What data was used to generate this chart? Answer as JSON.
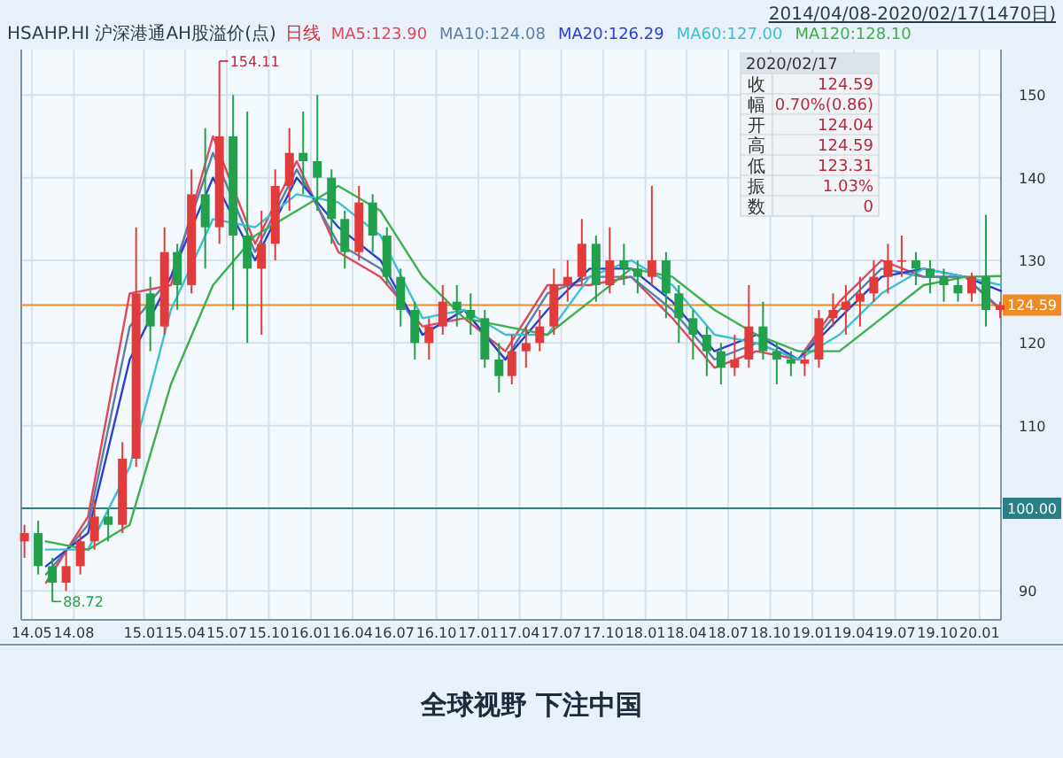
{
  "chart_data": {
    "type": "candlestick",
    "title": "HSAHP.HI 沪深港通AH股溢价(点)",
    "subtitle": "日线",
    "x": [
      "2014-04-15",
      "2014-05-15",
      "2014-06-15",
      "2014-07-15",
      "2014-08-15",
      "2014-09-15",
      "2014-10-15",
      "2014-11-15",
      "2014-12-15",
      "2015-01-15",
      "2015-02-15",
      "2015-03-15",
      "2015-04-15",
      "2015-05-15",
      "2015-06-15",
      "2015-07-15",
      "2015-08-15",
      "2015-09-15",
      "2015-10-15",
      "2015-11-15",
      "2015-12-15",
      "2016-01-15",
      "2016-02-15",
      "2016-03-15",
      "2016-04-15",
      "2016-05-15",
      "2016-06-15",
      "2016-07-15",
      "2016-08-15",
      "2016-09-15",
      "2016-10-15",
      "2016-11-15",
      "2016-12-15",
      "2017-01-15",
      "2017-02-15",
      "2017-03-15",
      "2017-04-15",
      "2017-05-15",
      "2017-06-15",
      "2017-07-15",
      "2017-08-15",
      "2017-09-15",
      "2017-10-15",
      "2017-11-15",
      "2017-12-15",
      "2018-01-15",
      "2018-02-15",
      "2018-03-15",
      "2018-04-15",
      "2018-05-15",
      "2018-06-15",
      "2018-07-15",
      "2018-08-15",
      "2018-09-15",
      "2018-10-15",
      "2018-11-15",
      "2018-12-15",
      "2019-01-15",
      "2019-02-15",
      "2019-03-15",
      "2019-04-15",
      "2019-05-15",
      "2019-06-15",
      "2019-07-15",
      "2019-08-15",
      "2019-09-15",
      "2019-10-15",
      "2019-11-15",
      "2019-12-15",
      "2020-01-15",
      "2020-02-15"
    ],
    "ohlc": [
      [
        96,
        98,
        94,
        97
      ],
      [
        97,
        98.5,
        92,
        93
      ],
      [
        93,
        94,
        88.72,
        91
      ],
      [
        91,
        95,
        90,
        93
      ],
      [
        93,
        97,
        92,
        96
      ],
      [
        96,
        101,
        95,
        99
      ],
      [
        99,
        100,
        96,
        98
      ],
      [
        98,
        108,
        97,
        106
      ],
      [
        106,
        134,
        105,
        126
      ],
      [
        126,
        128,
        119,
        122
      ],
      [
        122,
        134,
        121,
        131
      ],
      [
        131,
        132,
        124,
        127
      ],
      [
        127,
        141,
        126,
        138
      ],
      [
        138,
        146,
        129,
        134
      ],
      [
        134,
        154.11,
        132,
        145
      ],
      [
        145,
        150,
        124,
        133
      ],
      [
        133,
        148,
        120,
        129
      ],
      [
        129,
        136,
        121,
        132
      ],
      [
        132,
        141,
        130,
        139
      ],
      [
        139,
        146,
        136,
        143
      ],
      [
        143,
        148,
        138,
        142
      ],
      [
        142,
        150,
        136,
        140
      ],
      [
        140,
        141,
        132,
        135
      ],
      [
        135,
        136,
        129,
        131
      ],
      [
        131,
        139,
        130,
        137
      ],
      [
        137,
        138,
        131,
        133
      ],
      [
        133,
        134,
        127,
        128
      ],
      [
        128,
        129,
        122,
        124
      ],
      [
        124,
        125,
        118,
        120
      ],
      [
        120,
        123,
        118,
        122
      ],
      [
        122,
        127,
        121,
        125
      ],
      [
        125,
        127,
        122,
        124
      ],
      [
        124,
        126,
        121,
        123
      ],
      [
        123,
        124,
        117,
        118
      ],
      [
        118,
        120,
        114,
        116
      ],
      [
        116,
        121,
        115,
        119
      ],
      [
        119,
        122,
        117,
        120
      ],
      [
        120,
        124,
        119,
        122
      ],
      [
        122,
        129,
        121,
        127
      ],
      [
        127,
        130,
        125,
        128
      ],
      [
        128,
        135,
        127,
        132
      ],
      [
        132,
        133,
        125,
        127
      ],
      [
        127,
        134,
        126,
        130
      ],
      [
        130,
        132,
        127,
        129
      ],
      [
        129,
        130,
        126,
        128
      ],
      [
        128,
        139,
        127,
        130
      ],
      [
        130,
        131,
        123,
        126
      ],
      [
        126,
        127,
        120,
        123
      ],
      [
        123,
        124,
        118,
        121
      ],
      [
        121,
        122,
        116,
        119
      ],
      [
        119,
        120,
        115,
        117
      ],
      [
        117,
        121,
        116,
        118
      ],
      [
        118,
        127,
        117,
        122
      ],
      [
        122,
        125,
        118,
        119
      ],
      [
        119,
        120,
        115,
        118
      ],
      [
        118,
        119,
        116,
        117.5
      ],
      [
        117.5,
        119,
        116,
        118
      ],
      [
        118,
        124,
        117,
        123
      ],
      [
        123,
        126,
        122,
        124
      ],
      [
        124,
        127,
        121,
        125
      ],
      [
        125,
        128,
        122,
        126
      ],
      [
        126,
        130,
        125,
        128
      ],
      [
        128,
        132,
        126,
        130
      ],
      [
        130,
        133,
        128,
        130
      ],
      [
        130,
        131,
        127,
        129
      ],
      [
        129,
        130,
        126,
        128
      ],
      [
        128,
        129,
        125,
        127
      ],
      [
        127,
        128,
        125,
        126
      ],
      [
        126,
        128.5,
        125,
        128
      ],
      [
        128,
        135.5,
        122,
        124
      ],
      [
        124,
        125,
        123,
        124.59
      ]
    ],
    "colors": [
      "#e23b3b",
      "#22a04b",
      "#22a04b",
      "#e23b3b",
      "#e23b3b",
      "#e23b3b",
      "#22a04b",
      "#e23b3b",
      "#e23b3b",
      "#22a04b",
      "#e23b3b",
      "#22a04b",
      "#e23b3b",
      "#22a04b",
      "#e23b3b",
      "#22a04b",
      "#22a04b",
      "#e23b3b",
      "#e23b3b",
      "#e23b3b",
      "#22a04b",
      "#22a04b",
      "#22a04b",
      "#22a04b",
      "#e23b3b",
      "#22a04b",
      "#22a04b",
      "#22a04b",
      "#22a04b",
      "#e23b3b",
      "#e23b3b",
      "#22a04b",
      "#22a04b",
      "#22a04b",
      "#22a04b",
      "#e23b3b",
      "#e23b3b",
      "#e23b3b",
      "#e23b3b",
      "#e23b3b",
      "#e23b3b",
      "#22a04b",
      "#e23b3b",
      "#22a04b",
      "#22a04b",
      "#e23b3b",
      "#22a04b",
      "#22a04b",
      "#22a04b",
      "#22a04b",
      "#22a04b",
      "#e23b3b",
      "#e23b3b",
      "#22a04b",
      "#22a04b",
      "#22a04b",
      "#e23b3b",
      "#e23b3b",
      "#e23b3b",
      "#e23b3b",
      "#e23b3b",
      "#e23b3b",
      "#e23b3b",
      "#e23b3b",
      "#22a04b",
      "#22a04b",
      "#22a04b",
      "#22a04b",
      "#e23b3b",
      "#22a04b",
      "#e23b3b"
    ],
    "series": [
      {
        "type": "line",
        "name": "MA5:123.90",
        "color": "#e0485a",
        "x": [
          "2014-06-01",
          "2014-09-01",
          "2014-12-01",
          "2015-03-01",
          "2015-06-01",
          "2015-09-01",
          "2015-12-01",
          "2016-03-01",
          "2016-06-01",
          "2016-09-01",
          "2016-12-01",
          "2017-03-01",
          "2017-06-01",
          "2017-09-01",
          "2017-12-01",
          "2018-03-01",
          "2018-06-01",
          "2018-09-01",
          "2018-12-01",
          "2019-03-01",
          "2019-06-01",
          "2019-09-01",
          "2019-12-01",
          "2020-02-17"
        ],
        "values": [
          91,
          99,
          126,
          127,
          145,
          132,
          142,
          131,
          128,
          122,
          123,
          119,
          127,
          127,
          128,
          123,
          117,
          119,
          118,
          125,
          130,
          128,
          128,
          123.9
        ]
      },
      {
        "type": "line",
        "name": "MA10:124.08",
        "color": "#5b7fa6",
        "x": [
          "2014-06-01",
          "2014-09-01",
          "2014-12-01",
          "2015-03-01",
          "2015-06-01",
          "2015-09-01",
          "2015-12-01",
          "2016-03-01",
          "2016-06-01",
          "2016-09-01",
          "2016-12-01",
          "2017-03-01",
          "2017-06-01",
          "2017-09-01",
          "2017-12-01",
          "2018-03-01",
          "2018-06-01",
          "2018-09-01",
          "2018-12-01",
          "2019-03-01",
          "2019-06-01",
          "2019-09-01",
          "2019-12-01",
          "2020-02-17"
        ],
        "values": [
          92,
          98,
          122,
          128,
          143,
          131,
          141,
          132,
          129,
          121,
          124,
          118,
          126,
          128,
          128,
          124,
          118,
          120,
          118,
          124,
          129,
          128,
          128,
          124.1
        ]
      },
      {
        "type": "line",
        "name": "MA20:126.29",
        "color": "#2a3fd0",
        "x": [
          "2014-06-01",
          "2014-09-01",
          "2014-12-01",
          "2015-03-01",
          "2015-06-01",
          "2015-09-01",
          "2015-12-01",
          "2016-03-01",
          "2016-06-01",
          "2016-09-01",
          "2016-12-01",
          "2017-03-01",
          "2017-06-01",
          "2017-09-01",
          "2017-12-01",
          "2018-03-01",
          "2018-06-01",
          "2018-09-01",
          "2018-12-01",
          "2019-03-01",
          "2019-06-01",
          "2019-09-01",
          "2019-12-01",
          "2020-02-17"
        ],
        "values": [
          93,
          97,
          118,
          128,
          140,
          130,
          140,
          134,
          130,
          121,
          124,
          118,
          124,
          129,
          129,
          125,
          119,
          121,
          118,
          123,
          128,
          129,
          128,
          126.3
        ]
      },
      {
        "type": "line",
        "name": "MA60:127.00",
        "color": "#3cc0d0",
        "x": [
          "2014-06-01",
          "2014-09-01",
          "2014-12-01",
          "2015-03-01",
          "2015-06-01",
          "2015-09-01",
          "2015-12-01",
          "2016-03-01",
          "2016-06-01",
          "2016-09-01",
          "2016-12-01",
          "2017-03-01",
          "2017-06-01",
          "2017-09-01",
          "2017-12-01",
          "2018-03-01",
          "2018-06-01",
          "2018-09-01",
          "2018-12-01",
          "2019-03-01",
          "2019-06-01",
          "2019-09-01",
          "2019-12-01",
          "2020-02-17"
        ],
        "values": [
          95,
          95,
          105,
          124,
          135,
          134,
          138,
          137,
          133,
          123,
          124,
          121,
          121,
          128,
          130,
          127,
          121,
          120,
          118,
          121,
          126,
          129,
          128,
          127.0
        ]
      },
      {
        "type": "line",
        "name": "MA120:128.10",
        "color": "#3cb04a",
        "x": [
          "2014-06-01",
          "2014-09-01",
          "2014-12-01",
          "2015-03-01",
          "2015-06-01",
          "2015-09-01",
          "2015-12-01",
          "2016-03-01",
          "2016-06-01",
          "2016-09-01",
          "2016-12-01",
          "2017-03-01",
          "2017-06-01",
          "2017-09-01",
          "2017-12-01",
          "2018-03-01",
          "2018-06-01",
          "2018-09-01",
          "2018-12-01",
          "2019-03-01",
          "2019-06-01",
          "2019-09-01",
          "2019-12-01",
          "2020-02-17"
        ],
        "values": [
          96,
          95,
          98,
          115,
          127,
          133,
          136,
          139,
          136,
          128,
          123,
          122,
          121,
          125,
          129,
          128,
          124,
          121,
          119,
          119,
          123,
          127,
          128,
          128.1
        ]
      }
    ],
    "xlim": [
      "2014-04-08",
      "2020-02-17"
    ],
    "ylim": [
      86.5,
      155.5
    ],
    "xticks": [
      {
        "value": "2014-05",
        "label": "14.05"
      },
      {
        "value": "2014-08",
        "label": "14.08"
      },
      {
        "value": "2015-01",
        "label": "15.01"
      },
      {
        "value": "2015-04",
        "label": "15.04"
      },
      {
        "value": "2015-07",
        "label": "15.07"
      },
      {
        "value": "2015-10",
        "label": "15.10"
      },
      {
        "value": "2016-01",
        "label": "16.01"
      },
      {
        "value": "2016-04",
        "label": "16.04"
      },
      {
        "value": "2016-07",
        "label": "16.07"
      },
      {
        "value": "2016-10",
        "label": "16.10"
      },
      {
        "value": "2017-01",
        "label": "17.01"
      },
      {
        "value": "2017-04",
        "label": "17.04"
      },
      {
        "value": "2017-07",
        "label": "17.07"
      },
      {
        "value": "2017-10",
        "label": "17.10"
      },
      {
        "value": "2018-01",
        "label": "18.01"
      },
      {
        "value": "2018-04",
        "label": "18.04"
      },
      {
        "value": "2018-07",
        "label": "18.07"
      },
      {
        "value": "2018-10",
        "label": "18.10"
      },
      {
        "value": "2019-01",
        "label": "19.01"
      },
      {
        "value": "2019-04",
        "label": "19.04"
      },
      {
        "value": "2019-07",
        "label": "19.07"
      },
      {
        "value": "2019-10",
        "label": "19.10"
      },
      {
        "value": "2020-01",
        "label": "20.01"
      }
    ],
    "yticks": [
      90,
      110,
      120,
      130,
      140,
      150
    ],
    "ref_lines": [
      {
        "axis": "y",
        "value": 124.59,
        "label": "124.59",
        "color": "#f08a24"
      },
      {
        "axis": "y",
        "value": 100,
        "label": "100.00",
        "color": "#2a7f86"
      }
    ],
    "annotations": [
      "2014/04/08-2020/02/17(1470日)",
      "2020/02/17",
      "收",
      "124.59",
      "幅",
      "0.70%(0.86)",
      "开",
      "124.04",
      "高",
      "124.59",
      "低",
      "123.31",
      "振",
      "1.03%",
      "数",
      "0",
      {
        "text": "154.11",
        "x": "2015-06-15",
        "y": 154.11
      },
      {
        "text": "88.72",
        "x": "2014-06-15",
        "y": 88.72
      },
      "全球视野 下注中国"
    ],
    "grid": true,
    "legend": "top"
  }
}
